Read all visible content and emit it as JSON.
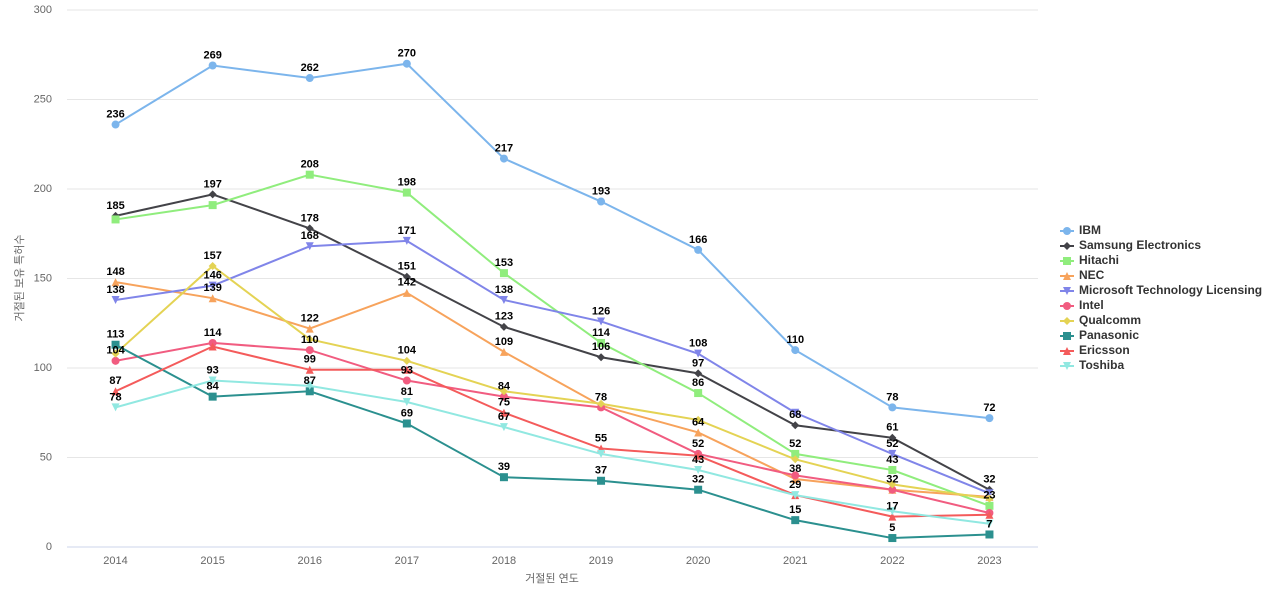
{
  "chart_data": {
    "type": "line",
    "x_label": "거절된 연도",
    "y_label": "거절된 보유 특허수",
    "categories": [
      "2014",
      "2015",
      "2016",
      "2017",
      "2018",
      "2019",
      "2020",
      "2021",
      "2022",
      "2023"
    ],
    "ylim": [
      0,
      300
    ],
    "yticks": [
      0,
      50,
      100,
      150,
      200,
      250,
      300
    ],
    "grid": true,
    "legend": "right",
    "series": [
      {
        "name": "IBM",
        "color": "#7cb5ec",
        "marker": "circle",
        "values": [
          236,
          269,
          262,
          270,
          217,
          193,
          166,
          110,
          78,
          72
        ],
        "value_labels": [
          "236",
          "269",
          "262",
          "270",
          "217",
          "193",
          "166",
          "110",
          "78",
          "72"
        ]
      },
      {
        "name": "Samsung Electronics",
        "color": "#434348",
        "marker": "diamond",
        "values": [
          185,
          197,
          178,
          151,
          123,
          106,
          97,
          68,
          61,
          32
        ],
        "value_labels": [
          "185",
          "197",
          "178",
          "151",
          "123",
          "106",
          "97",
          "68",
          "61",
          "32"
        ]
      },
      {
        "name": "Hitachi",
        "color": "#90ed7d",
        "marker": "square",
        "values": [
          183,
          191,
          208,
          198,
          153,
          114,
          86,
          52,
          43,
          23
        ],
        "value_labels": [
          null,
          null,
          "208",
          "198",
          "153",
          "114",
          "86",
          "52",
          "43",
          "23"
        ]
      },
      {
        "name": "NEC",
        "color": "#f7a35c",
        "marker": "triangle",
        "values": [
          148,
          139,
          122,
          142,
          109,
          79,
          64,
          38,
          32,
          28
        ],
        "value_labels": [
          "148",
          "139",
          "122",
          "142",
          "109",
          null,
          "64",
          "38",
          "32",
          null
        ]
      },
      {
        "name": "Microsoft Technology Licensing",
        "color": "#8085e9",
        "marker": "triangle-down",
        "values": [
          138,
          146,
          168,
          171,
          138,
          126,
          108,
          75,
          52,
          30
        ],
        "value_labels": [
          "138",
          "146",
          "168",
          "171",
          "138",
          "126",
          "108",
          null,
          "52",
          null
        ]
      },
      {
        "name": "Intel",
        "color": "#f15c80",
        "marker": "circle",
        "values": [
          104,
          114,
          110,
          93,
          84,
          78,
          52,
          40,
          32,
          19
        ],
        "value_labels": [
          "104",
          "114",
          "110",
          "93",
          "84",
          "78",
          "52",
          null,
          null,
          null
        ]
      },
      {
        "name": "Qualcomm",
        "color": "#e4d354",
        "marker": "diamond",
        "values": [
          108,
          157,
          116,
          104,
          87,
          80,
          71,
          49,
          35,
          27
        ],
        "value_labels": [
          null,
          "157",
          null,
          "104",
          null,
          null,
          null,
          null,
          null,
          null
        ]
      },
      {
        "name": "Panasonic",
        "color": "#2b908f",
        "marker": "square",
        "values": [
          113,
          84,
          87,
          69,
          39,
          37,
          32,
          15,
          5,
          7
        ],
        "value_labels": [
          "113",
          "84",
          "87",
          "69",
          "39",
          "37",
          "32",
          "15",
          "5",
          "7"
        ]
      },
      {
        "name": "Ericsson",
        "color": "#f45b5b",
        "marker": "triangle",
        "values": [
          87,
          112,
          99,
          99,
          75,
          55,
          51,
          29,
          17,
          18
        ],
        "value_labels": [
          "87",
          null,
          "99",
          null,
          "75",
          "55",
          null,
          "29",
          "17",
          null
        ]
      },
      {
        "name": "Toshiba",
        "color": "#91e8e1",
        "marker": "triangle-down",
        "values": [
          78,
          93,
          90,
          81,
          67,
          52,
          43,
          29,
          20,
          13
        ],
        "value_labels": [
          "78",
          "93",
          null,
          "81",
          "67",
          null,
          "43",
          null,
          null,
          null
        ]
      }
    ]
  }
}
